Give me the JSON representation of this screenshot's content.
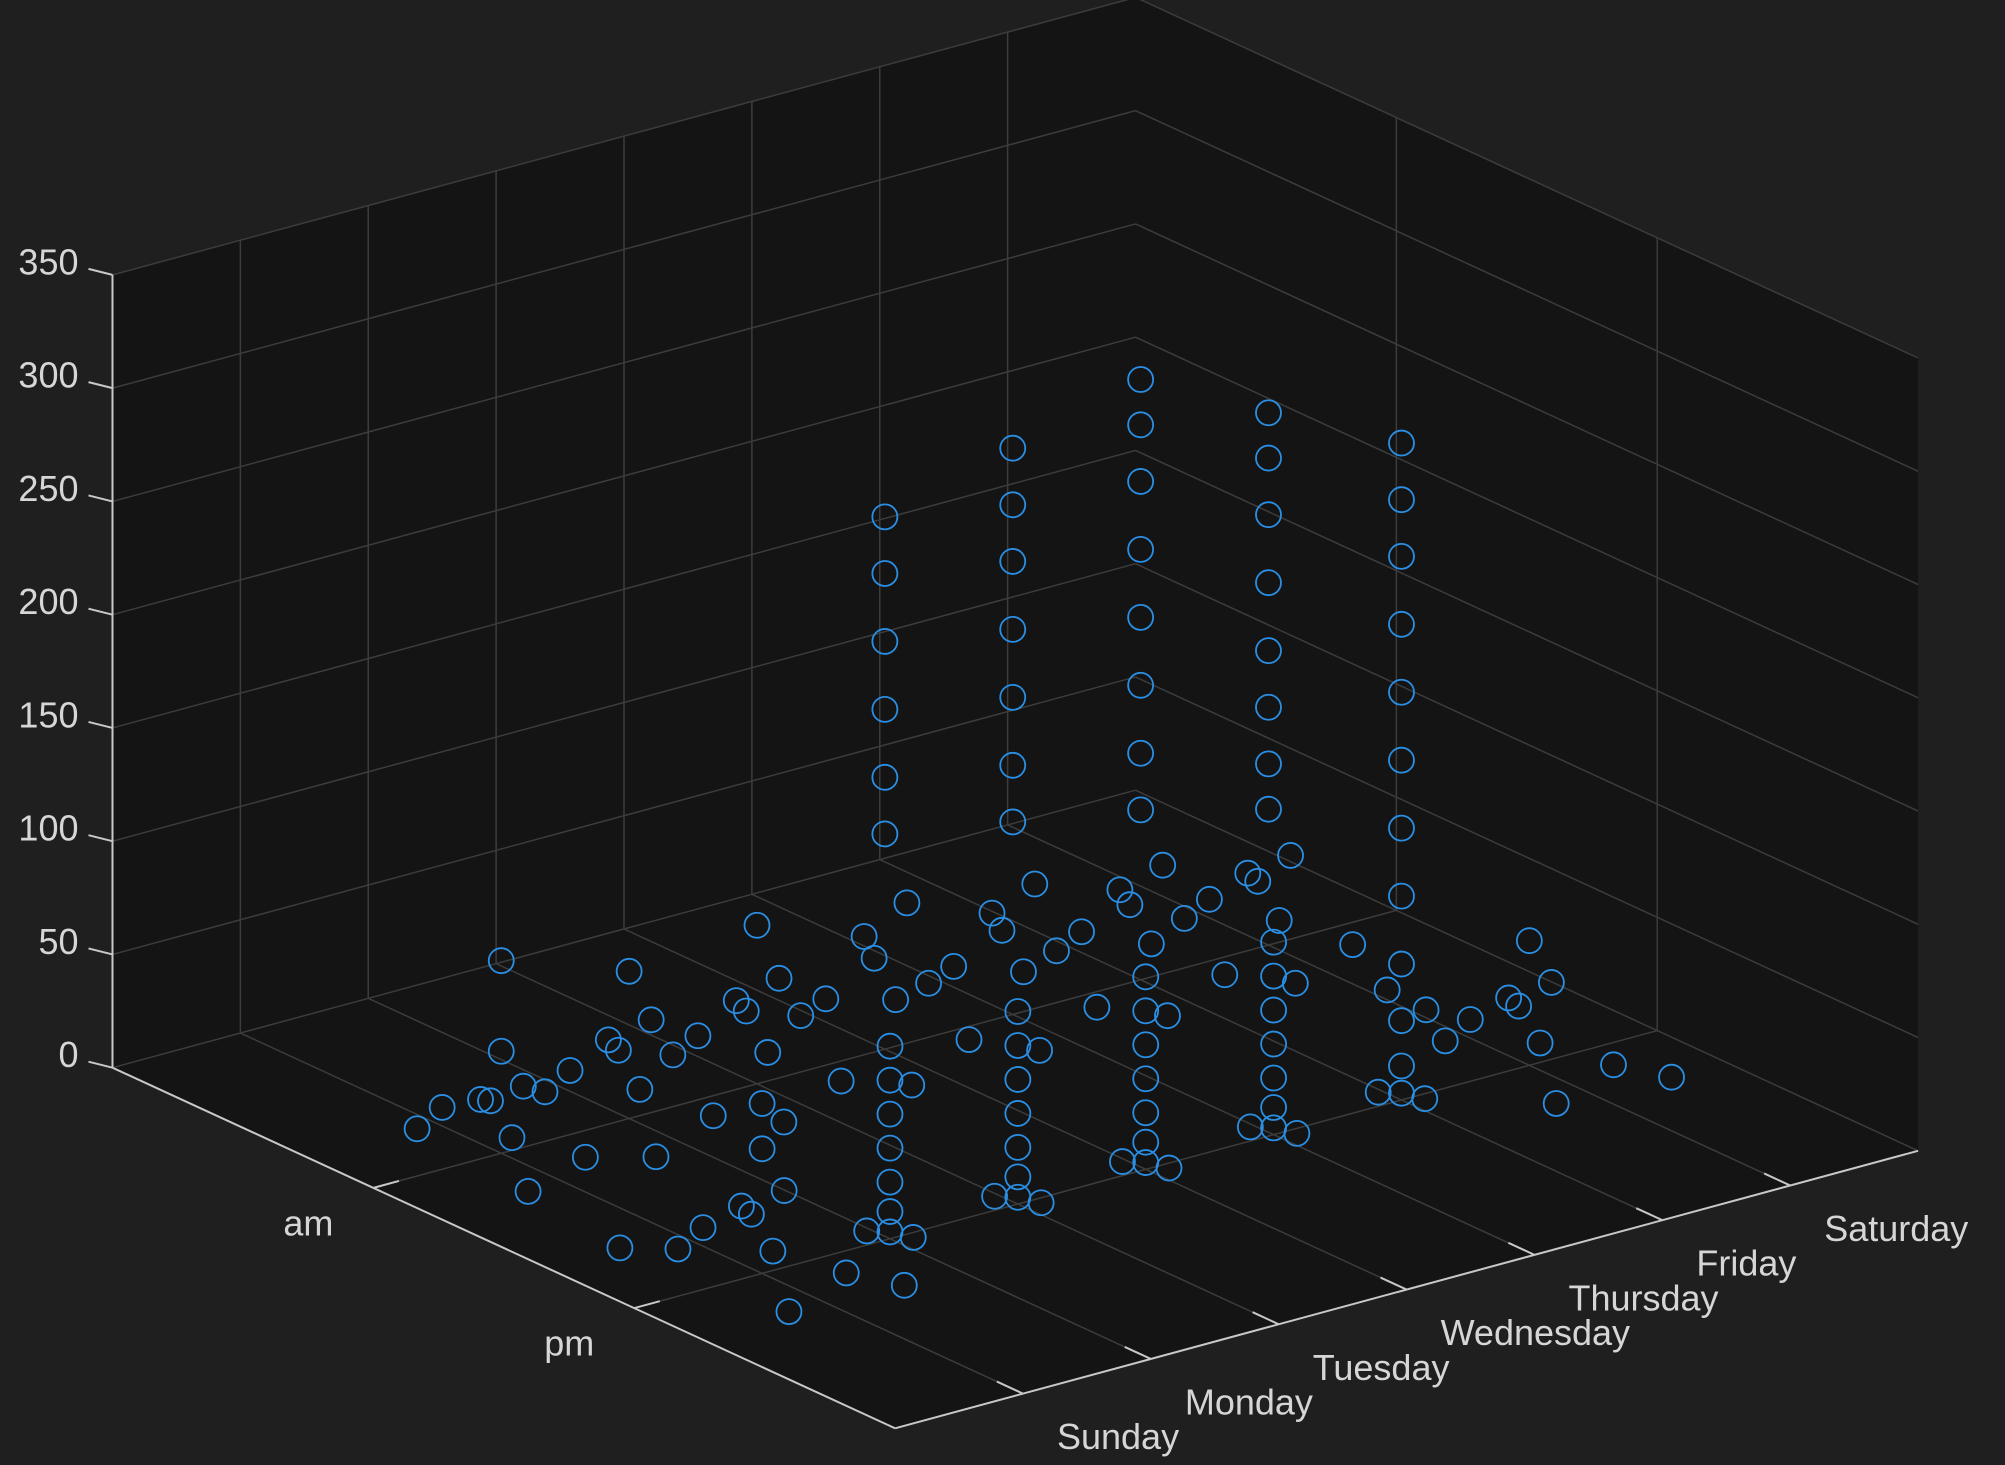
{
  "chart_data": {
    "type": "scatter3d",
    "color": "#2a8fe4",
    "grid": true,
    "xlim": [
      0,
      8
    ],
    "ylim": [
      0,
      3
    ],
    "zlim": [
      0,
      350
    ],
    "xticks": [
      {
        "value": 1,
        "label": "Sunday"
      },
      {
        "value": 2,
        "label": "Monday"
      },
      {
        "value": 3,
        "label": "Tuesday"
      },
      {
        "value": 4,
        "label": "Wednesday"
      },
      {
        "value": 5,
        "label": "Thursday"
      },
      {
        "value": 6,
        "label": "Friday"
      },
      {
        "value": 7,
        "label": "Saturday"
      }
    ],
    "yticks": [
      {
        "value": 1,
        "label": "am"
      },
      {
        "value": 2,
        "label": "pm"
      }
    ],
    "zticks": [
      0,
      50,
      100,
      150,
      200,
      250,
      300,
      350
    ],
    "points": [
      [
        1,
        1,
        45
      ],
      [
        1.05,
        1.06,
        32
      ],
      [
        0.94,
        0.95,
        22
      ],
      [
        1.12,
        0.9,
        16
      ],
      [
        0.88,
        1.1,
        14
      ],
      [
        1.25,
        1.2,
        5
      ],
      [
        0.75,
        0.8,
        4
      ],
      [
        1.15,
        0.7,
        2
      ],
      [
        0.7,
        1.25,
        1
      ],
      [
        1,
        1,
        85
      ],
      [
        2,
        1,
        65
      ],
      [
        2.05,
        1.06,
        46
      ],
      [
        1.94,
        0.95,
        33
      ],
      [
        2.12,
        0.9,
        23
      ],
      [
        1.88,
        1.1,
        20
      ],
      [
        2.25,
        1.2,
        8
      ],
      [
        1.75,
        0.8,
        5
      ],
      [
        2.15,
        0.7,
        3
      ],
      [
        1.7,
        1.25,
        1
      ],
      [
        3,
        1,
        70
      ],
      [
        3.05,
        1.06,
        49
      ],
      [
        2.94,
        0.95,
        35
      ],
      [
        3.12,
        0.9,
        25
      ],
      [
        2.88,
        1.1,
        21
      ],
      [
        3.25,
        1.2,
        8
      ],
      [
        2.75,
        0.8,
        6
      ],
      [
        3.15,
        0.7,
        3
      ],
      [
        2.7,
        1.25,
        1
      ],
      [
        4,
        1,
        95
      ],
      [
        4.05,
        1.06,
        67
      ],
      [
        3.94,
        0.95,
        48
      ],
      [
        4.12,
        0.9,
        33
      ],
      [
        3.88,
        1.1,
        29
      ],
      [
        4.25,
        1.2,
        11
      ],
      [
        3.75,
        0.8,
        8
      ],
      [
        4.15,
        0.7,
        4
      ],
      [
        3.7,
        1.25,
        2
      ],
      [
        4,
        1,
        120
      ],
      [
        4,
        1,
        150
      ],
      [
        4,
        1,
        180
      ],
      [
        4,
        1,
        210
      ],
      [
        4,
        1,
        235
      ],
      [
        5,
        1,
        85
      ],
      [
        5.05,
        1.06,
        60
      ],
      [
        4.94,
        0.95,
        43
      ],
      [
        5.12,
        0.9,
        30
      ],
      [
        4.88,
        1.1,
        26
      ],
      [
        5.25,
        1.2,
        10
      ],
      [
        4.75,
        0.8,
        7
      ],
      [
        5.15,
        0.7,
        3
      ],
      [
        4.7,
        1.25,
        2
      ],
      [
        5,
        1,
        110
      ],
      [
        5,
        1,
        140
      ],
      [
        5,
        1,
        170
      ],
      [
        5,
        1,
        200
      ],
      [
        5,
        1,
        225
      ],
      [
        5,
        1,
        250
      ],
      [
        6,
        1,
        75
      ],
      [
        6.05,
        1.06,
        53
      ],
      [
        5.94,
        0.95,
        38
      ],
      [
        6.12,
        0.9,
        26
      ],
      [
        5.88,
        1.1,
        23
      ],
      [
        6.25,
        1.2,
        9
      ],
      [
        5.75,
        0.8,
        6
      ],
      [
        6.15,
        0.7,
        3
      ],
      [
        5.7,
        1.25,
        2
      ],
      [
        6,
        1,
        100
      ],
      [
        6,
        1,
        130
      ],
      [
        6,
        1,
        160
      ],
      [
        6,
        1,
        190
      ],
      [
        6,
        1,
        220
      ],
      [
        6,
        1,
        245
      ],
      [
        6,
        1,
        265
      ],
      [
        7,
        1,
        60
      ],
      [
        7.05,
        1.06,
        42
      ],
      [
        6.94,
        0.95,
        30
      ],
      [
        7.12,
        0.9,
        21
      ],
      [
        6.88,
        1.1,
        18
      ],
      [
        7.25,
        1.2,
        7
      ],
      [
        6.75,
        0.8,
        5
      ],
      [
        7.15,
        0.7,
        2
      ],
      [
        6.7,
        1.25,
        1
      ],
      [
        7,
        1,
        80
      ],
      [
        7,
        1,
        105
      ],
      [
        7,
        1,
        130
      ],
      [
        7,
        1,
        160
      ],
      [
        7,
        1,
        190
      ],
      [
        7,
        1,
        215
      ],
      [
        7,
        1,
        235
      ],
      [
        1,
        2,
        55
      ],
      [
        1.05,
        2.06,
        39
      ],
      [
        0.94,
        1.95,
        28
      ],
      [
        1.12,
        1.9,
        19
      ],
      [
        0.88,
        2.1,
        17
      ],
      [
        1.25,
        2.2,
        7
      ],
      [
        0.75,
        1.8,
        4
      ],
      [
        1.15,
        1.7,
        2
      ],
      [
        0.7,
        2.25,
        1
      ],
      [
        1.5,
        2.3,
        3
      ],
      [
        0.5,
        1.7,
        3
      ],
      [
        1,
        2,
        75
      ],
      [
        2,
        2,
        3
      ],
      [
        2.08,
        2.05,
        2
      ],
      [
        1.92,
        1.95,
        2
      ],
      [
        2,
        2,
        12
      ],
      [
        2,
        2,
        25
      ],
      [
        2,
        2,
        40
      ],
      [
        2,
        2,
        55
      ],
      [
        2,
        2,
        70
      ],
      [
        2,
        2,
        85
      ],
      [
        3,
        2,
        3
      ],
      [
        3.08,
        2.05,
        2
      ],
      [
        2.92,
        1.95,
        2
      ],
      [
        3,
        2,
        12
      ],
      [
        3,
        2,
        25
      ],
      [
        3,
        2,
        40
      ],
      [
        3,
        2,
        55
      ],
      [
        3,
        2,
        70
      ],
      [
        3,
        2,
        85
      ],
      [
        4,
        2,
        3
      ],
      [
        4.08,
        2.05,
        2
      ],
      [
        3.92,
        1.95,
        2
      ],
      [
        4,
        2,
        12
      ],
      [
        4,
        2,
        25
      ],
      [
        4,
        2,
        40
      ],
      [
        4,
        2,
        55
      ],
      [
        4,
        2,
        70
      ],
      [
        4,
        2,
        85
      ],
      [
        5,
        2,
        3
      ],
      [
        5.08,
        2.05,
        2
      ],
      [
        4.92,
        1.95,
        2
      ],
      [
        5,
        2,
        12
      ],
      [
        5,
        2,
        25
      ],
      [
        5,
        2,
        40
      ],
      [
        5,
        2,
        55
      ],
      [
        5,
        2,
        70
      ],
      [
        5,
        2,
        85
      ],
      [
        6,
        2,
        3
      ],
      [
        6.08,
        2.05,
        2
      ],
      [
        5.92,
        1.95,
        2
      ],
      [
        6,
        2,
        15
      ],
      [
        6,
        2,
        35
      ],
      [
        6,
        2,
        60
      ],
      [
        6,
        2,
        90
      ],
      [
        6,
        2,
        120
      ],
      [
        6,
        2,
        150
      ],
      [
        6,
        2,
        180
      ],
      [
        6,
        2,
        210
      ],
      [
        6,
        2,
        240
      ],
      [
        6,
        2,
        265
      ],
      [
        6,
        2,
        290
      ],
      [
        7,
        2,
        55
      ],
      [
        7.05,
        2.06,
        39
      ],
      [
        6.94,
        1.95,
        28
      ],
      [
        7.12,
        1.9,
        19
      ],
      [
        6.88,
        2.1,
        17
      ],
      [
        7.25,
        2.2,
        7
      ],
      [
        6.75,
        1.8,
        4
      ],
      [
        7.15,
        1.7,
        2
      ],
      [
        6.7,
        2.25,
        1
      ],
      [
        7.5,
        2.3,
        3
      ],
      [
        6.5,
        1.7,
        25
      ],
      [
        6.6,
        1.8,
        20
      ]
    ]
  }
}
